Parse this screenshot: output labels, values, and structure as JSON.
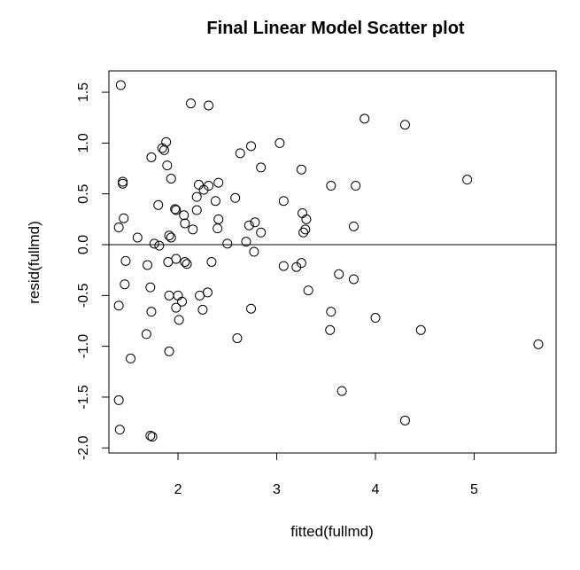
{
  "chart_data": {
    "type": "scatter",
    "title": "Final Linear Model Scatter plot",
    "xlabel": "fitted(fullmd)",
    "ylabel": "resid(fullmd)",
    "xlim": [
      1.3,
      5.83
    ],
    "ylim": [
      -2.05,
      1.71
    ],
    "x_ticks": [
      2,
      3,
      4,
      5
    ],
    "y_ticks": [
      -2.0,
      -1.5,
      -1.0,
      -0.5,
      0.0,
      0.5,
      1.0,
      1.5
    ],
    "x_tick_labels": [
      "2",
      "3",
      "4",
      "5"
    ],
    "y_tick_labels": [
      "-2.0",
      "-1.5",
      "-1.0",
      "-0.5",
      "0.0",
      "0.5",
      "1.0",
      "1.5"
    ],
    "reference_line_y": 0,
    "points": [
      {
        "x": 1.42,
        "y": 1.57
      },
      {
        "x": 2.13,
        "y": 1.39
      },
      {
        "x": 2.31,
        "y": 1.37
      },
      {
        "x": 3.89,
        "y": 1.24
      },
      {
        "x": 4.3,
        "y": 1.18
      },
      {
        "x": 1.88,
        "y": 1.01
      },
      {
        "x": 3.03,
        "y": 1.0
      },
      {
        "x": 2.74,
        "y": 0.97
      },
      {
        "x": 1.84,
        "y": 0.95
      },
      {
        "x": 1.86,
        "y": 0.93
      },
      {
        "x": 2.63,
        "y": 0.9
      },
      {
        "x": 1.73,
        "y": 0.86
      },
      {
        "x": 1.89,
        "y": 0.78
      },
      {
        "x": 2.84,
        "y": 0.76
      },
      {
        "x": 3.25,
        "y": 0.74
      },
      {
        "x": 1.93,
        "y": 0.65
      },
      {
        "x": 4.93,
        "y": 0.64
      },
      {
        "x": 1.44,
        "y": 0.62
      },
      {
        "x": 1.44,
        "y": 0.6
      },
      {
        "x": 2.41,
        "y": 0.61
      },
      {
        "x": 2.21,
        "y": 0.59
      },
      {
        "x": 2.31,
        "y": 0.58
      },
      {
        "x": 3.55,
        "y": 0.58
      },
      {
        "x": 3.8,
        "y": 0.58
      },
      {
        "x": 2.26,
        "y": 0.54
      },
      {
        "x": 2.19,
        "y": 0.47
      },
      {
        "x": 2.58,
        "y": 0.46
      },
      {
        "x": 3.07,
        "y": 0.43
      },
      {
        "x": 2.38,
        "y": 0.43
      },
      {
        "x": 1.8,
        "y": 0.39
      },
      {
        "x": 1.97,
        "y": 0.35
      },
      {
        "x": 1.98,
        "y": 0.34
      },
      {
        "x": 2.19,
        "y": 0.34
      },
      {
        "x": 3.26,
        "y": 0.31
      },
      {
        "x": 2.06,
        "y": 0.29
      },
      {
        "x": 1.45,
        "y": 0.26
      },
      {
        "x": 2.41,
        "y": 0.25
      },
      {
        "x": 3.3,
        "y": 0.25
      },
      {
        "x": 2.78,
        "y": 0.22
      },
      {
        "x": 2.07,
        "y": 0.21
      },
      {
        "x": 2.72,
        "y": 0.19
      },
      {
        "x": 3.78,
        "y": 0.18
      },
      {
        "x": 1.4,
        "y": 0.17
      },
      {
        "x": 2.15,
        "y": 0.15
      },
      {
        "x": 2.4,
        "y": 0.16
      },
      {
        "x": 3.29,
        "y": 0.15
      },
      {
        "x": 2.84,
        "y": 0.12
      },
      {
        "x": 3.27,
        "y": 0.12
      },
      {
        "x": 1.91,
        "y": 0.09
      },
      {
        "x": 1.93,
        "y": 0.07
      },
      {
        "x": 1.59,
        "y": 0.07
      },
      {
        "x": 2.69,
        "y": 0.03
      },
      {
        "x": 1.76,
        "y": 0.01
      },
      {
        "x": 2.5,
        "y": 0.01
      },
      {
        "x": 1.81,
        "y": -0.01
      },
      {
        "x": 2.77,
        "y": -0.07
      },
      {
        "x": 1.98,
        "y": -0.14
      },
      {
        "x": 1.47,
        "y": -0.16
      },
      {
        "x": 1.9,
        "y": -0.17
      },
      {
        "x": 2.07,
        "y": -0.17
      },
      {
        "x": 2.34,
        "y": -0.17
      },
      {
        "x": 3.25,
        "y": -0.18
      },
      {
        "x": 2.09,
        "y": -0.19
      },
      {
        "x": 1.69,
        "y": -0.2
      },
      {
        "x": 3.07,
        "y": -0.21
      },
      {
        "x": 3.2,
        "y": -0.22
      },
      {
        "x": 3.63,
        "y": -0.29
      },
      {
        "x": 3.78,
        "y": -0.34
      },
      {
        "x": 1.46,
        "y": -0.39
      },
      {
        "x": 1.72,
        "y": -0.42
      },
      {
        "x": 3.32,
        "y": -0.45
      },
      {
        "x": 2.3,
        "y": -0.47
      },
      {
        "x": 1.91,
        "y": -0.5
      },
      {
        "x": 2.0,
        "y": -0.5
      },
      {
        "x": 2.22,
        "y": -0.5
      },
      {
        "x": 2.04,
        "y": -0.56
      },
      {
        "x": 1.4,
        "y": -0.6
      },
      {
        "x": 1.98,
        "y": -0.62
      },
      {
        "x": 2.74,
        "y": -0.63
      },
      {
        "x": 2.25,
        "y": -0.64
      },
      {
        "x": 1.73,
        "y": -0.66
      },
      {
        "x": 3.55,
        "y": -0.66
      },
      {
        "x": 4.0,
        "y": -0.72
      },
      {
        "x": 2.01,
        "y": -0.74
      },
      {
        "x": 3.54,
        "y": -0.84
      },
      {
        "x": 4.46,
        "y": -0.84
      },
      {
        "x": 1.68,
        "y": -0.88
      },
      {
        "x": 2.6,
        "y": -0.92
      },
      {
        "x": 5.65,
        "y": -0.98
      },
      {
        "x": 1.91,
        "y": -1.05
      },
      {
        "x": 1.52,
        "y": -1.12
      },
      {
        "x": 3.66,
        "y": -1.44
      },
      {
        "x": 1.4,
        "y": -1.53
      },
      {
        "x": 4.3,
        "y": -1.73
      },
      {
        "x": 1.41,
        "y": -1.82
      },
      {
        "x": 1.72,
        "y": -1.88
      },
      {
        "x": 1.74,
        "y": -1.89
      }
    ]
  }
}
